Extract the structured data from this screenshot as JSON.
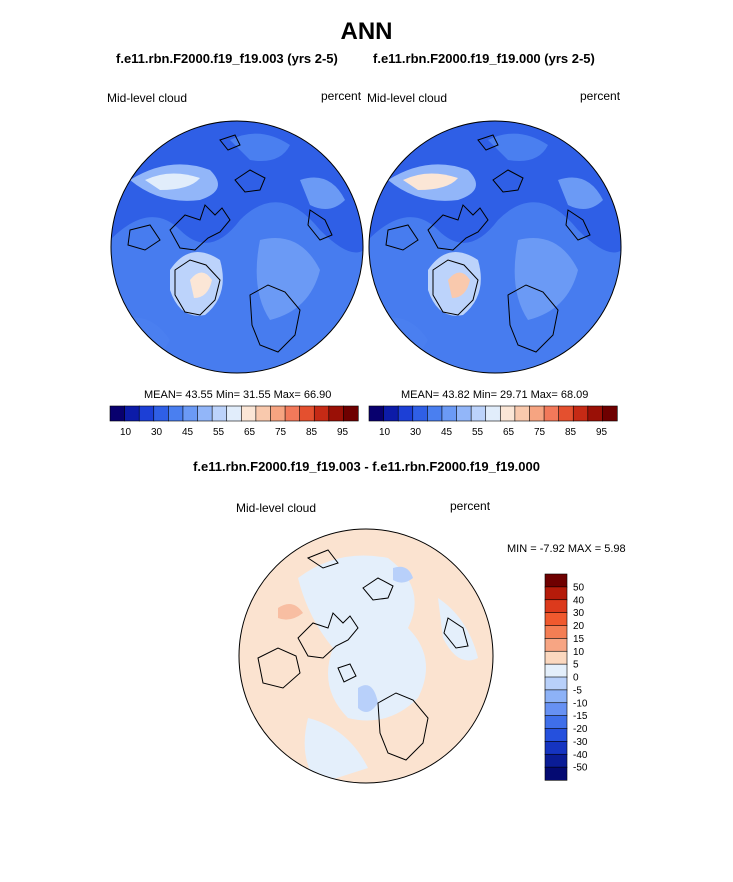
{
  "title": "ANN",
  "panels": [
    {
      "case": "f.e11.rbn.F2000.f19_f19.003 (yrs 2-5)",
      "variable": "Mid-level cloud",
      "units": "percent",
      "stats": "MEAN=  43.55  Min=  31.55  Max=  66.90"
    },
    {
      "case": "f.e11.rbn.F2000.f19_f19.000 (yrs 2-5)",
      "variable": "Mid-level cloud",
      "units": "percent",
      "stats": "MEAN=  43.82  Min=  29.71  Max=  68.09"
    }
  ],
  "colorbar": {
    "colors": [
      "#08006e",
      "#0c1ba8",
      "#1c3fd6",
      "#2f5fe6",
      "#4a7ff0",
      "#6b9af5",
      "#92b6f9",
      "#bcd3fb",
      "#e1edfb",
      "#fbe6d6",
      "#f9c9ad",
      "#f6a481",
      "#f2795a",
      "#e4502f",
      "#c62a15",
      "#9a1006",
      "#6e0000"
    ],
    "labels": [
      "10",
      "30",
      "45",
      "55",
      "65",
      "75",
      "85",
      "95"
    ]
  },
  "difference": {
    "title": "f.e11.rbn.F2000.f19_f19.003 - f.e11.rbn.F2000.f19_f19.000",
    "variable": "Mid-level cloud",
    "units": "percent",
    "minmax": "MIN =  -7.92 MAX =   5.98",
    "colorbar_colors": [
      "#6e0000",
      "#b51b0a",
      "#dc3a1c",
      "#f0592e",
      "#f47e54",
      "#f7a583",
      "#fbd8bf",
      "#e4effb",
      "#b8d0fa",
      "#8db2f7",
      "#6791f3",
      "#3f6fea",
      "#2550dd",
      "#1534c1",
      "#0a1c96",
      "#040a72"
    ],
    "colorbar_labels": [
      "50",
      "40",
      "30",
      "20",
      "15",
      "10",
      "5",
      "0",
      "-5",
      "-10",
      "-15",
      "-20",
      "-30",
      "-40",
      "-50"
    ]
  }
}
